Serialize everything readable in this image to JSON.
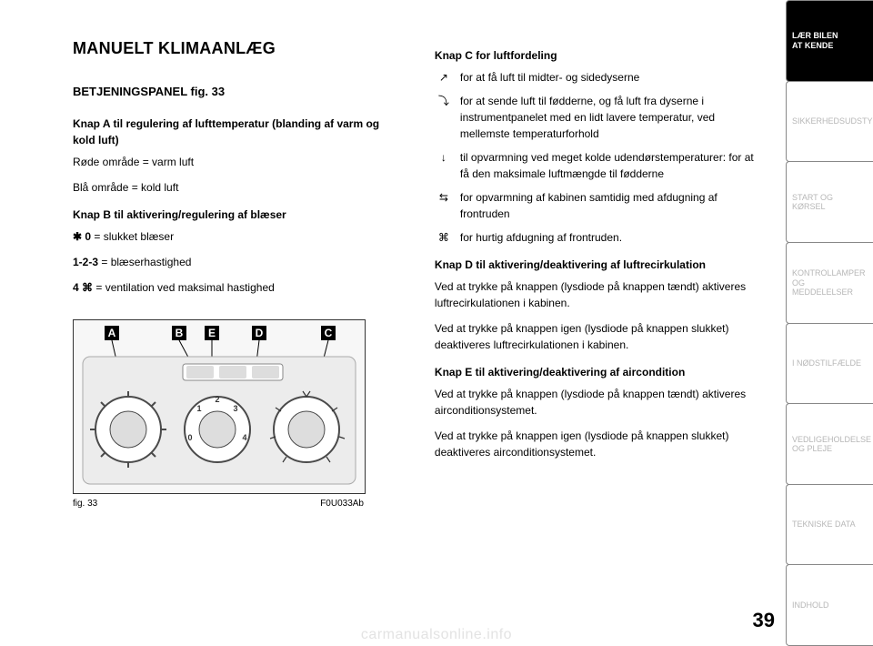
{
  "title": "MANUELT KLIMAANLÆG",
  "subtitle": "BETJENINGSPANEL fig. 33",
  "knapA": {
    "heading": "Knap A til regulering af lufttemperatur (blanding af varm og kold luft)",
    "line1": "Røde område = varm luft",
    "line2": "Blå område = kold luft"
  },
  "knapB": {
    "heading": "Knap B til aktivering/regulering af blæser",
    "row0_prefix": "✱ 0",
    "row0_text": " = slukket blæser",
    "row1_prefix": "1-2-3",
    "row1_text": " = blæserhastighed",
    "row2_prefix": "4 ⌘",
    "row2_text": " = ventilation ved maksimal hastighed"
  },
  "knapC": {
    "heading": "Knap C for luftfordeling",
    "items": [
      {
        "icon": "↗",
        "text": "for at få luft til midter- og sidedyserne"
      },
      {
        "icon": "⤵",
        "text": "for at sende luft til fødderne, og få luft fra dyserne i instrumentpanelet med en lidt lavere temperatur, ved mellemste temperaturforhold"
      },
      {
        "icon": "↓",
        "text": "til opvarmning ved meget kolde udendørstemperaturer: for at få den maksimale luftmængde til fødderne"
      },
      {
        "icon": "⇆",
        "text": "for opvarmning af kabinen samtidig med afdugning af frontruden"
      },
      {
        "icon": "⌘",
        "text": "for hurtig afdugning af frontruden."
      }
    ]
  },
  "knapD": {
    "heading": "Knap D til aktivering/deaktivering af luftrecirkulation",
    "p1": "Ved at trykke på knappen (lysdiode på knappen tændt) aktiveres luftrecirkulationen i kabinen.",
    "p2": "Ved at trykke på knappen igen (lysdiode på knappen slukket) deaktiveres luftrecirkulationen i kabinen."
  },
  "knapE": {
    "heading": "Knap E til aktivering/deaktivering af aircondition",
    "p1": "Ved at trykke på knappen (lysdiode på knappen tændt) aktiveres airconditionsystemet.",
    "p2": "Ved at trykke på knappen igen (lysdiode på knappen slukket) deaktiveres airconditionsystemet."
  },
  "figure": {
    "caption_left": "fig. 33",
    "caption_right": "F0U033Ab",
    "labels": [
      "A",
      "B",
      "E",
      "D",
      "C"
    ]
  },
  "sidebar": [
    {
      "text": "LÆR BILEN\nAT KENDE",
      "active": true
    },
    {
      "text": "SIKKERHEDSUDSTYR",
      "active": false
    },
    {
      "text": "START OG KØRSEL",
      "active": false
    },
    {
      "text": "KONTROLLAMPER\nOG MEDDELELSER",
      "active": false
    },
    {
      "text": "I NØDSTILFÆLDE",
      "active": false
    },
    {
      "text": "VEDLIGEHOLDELSE\nOG PLEJE",
      "active": false
    },
    {
      "text": "TEKNISKE DATA",
      "active": false
    },
    {
      "text": "INDHOLD",
      "active": false
    }
  ],
  "page_number": "39",
  "watermark": "carmanualsonline.info",
  "colors": {
    "text": "#000000",
    "bg": "#ffffff",
    "tab_inactive_text": "#b7b7b7",
    "tab_border": "#888888",
    "watermark": "#e3e3e3",
    "figure_border": "#333333",
    "figure_bg": "#f7f7f7",
    "dial_stroke": "#4a4a4a"
  }
}
